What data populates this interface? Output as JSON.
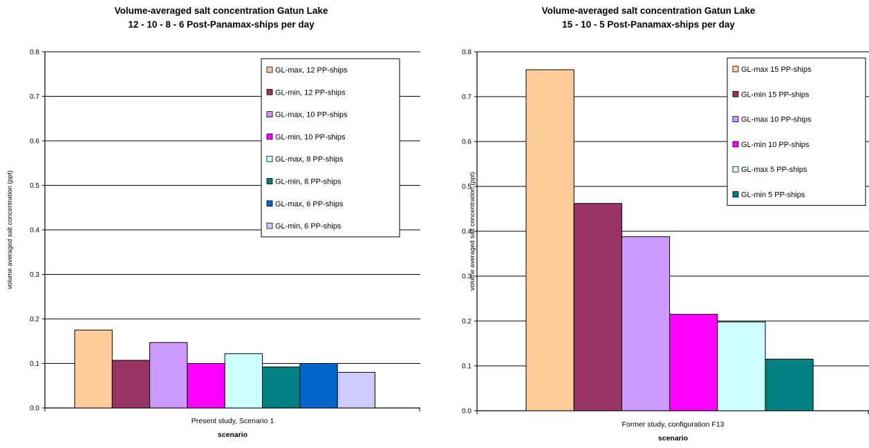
{
  "charts": [
    {
      "id": "left",
      "chart_data": {
        "type": "bar",
        "title_lines": [
          "Volume-averaged salt concentration Gatun Lake",
          "12 - 10 - 8 - 6 Post-Panamax-ships per day"
        ],
        "xlabel": "scenario",
        "ylabel": "volume averaged salt concentration (ppt)",
        "categories": [
          "Present study, Scenario 1"
        ],
        "ylim": [
          0,
          0.8
        ],
        "yticks": [
          "0.0",
          "0.1",
          "0.2",
          "0.3",
          "0.4",
          "0.5",
          "0.6",
          "0.7",
          "0.8"
        ],
        "grid": true,
        "legend_position": "top-right",
        "series": [
          {
            "name": "GL-max, 12 PP-ships",
            "values": [
              0.175
            ],
            "color": "#FFCC99"
          },
          {
            "name": "GL-min, 12 PP-ships",
            "values": [
              0.107
            ],
            "color": "#993366"
          },
          {
            "name": "GL-max, 10 PP-ships",
            "values": [
              0.147
            ],
            "color": "#CC99FF"
          },
          {
            "name": "GL-min, 10 PP-ships",
            "values": [
              0.1
            ],
            "color": "#FF00FF"
          },
          {
            "name": "GL-max, 8 PP-ships",
            "values": [
              0.122
            ],
            "color": "#CCFFFF"
          },
          {
            "name": "GL-min, 8 PP-ships",
            "values": [
              0.092
            ],
            "color": "#008080"
          },
          {
            "name": "GL-max, 6 PP-ships",
            "values": [
              0.1
            ],
            "color": "#0066CC"
          },
          {
            "name": "GL-min, 6 PP-ships",
            "values": [
              0.08
            ],
            "color": "#CCCCFF"
          }
        ]
      }
    },
    {
      "id": "right",
      "chart_data": {
        "type": "bar",
        "title_lines": [
          "Volume-averaged salt concentration Gatun Lake",
          "15 - 10 - 5 Post-Panamax-ships per day"
        ],
        "xlabel": "scenario",
        "ylabel": "volume averaged salt concentration (ppt)",
        "categories": [
          "Former study, configuration F13"
        ],
        "ylim": [
          0,
          0.8
        ],
        "yticks": [
          "0.0",
          "0.1",
          "0.2",
          "0.3",
          "0.4",
          "0.5",
          "0.6",
          "0.7",
          "0.8"
        ],
        "grid": true,
        "legend_position": "top-right",
        "series": [
          {
            "name": "GL-max 15 PP-ships",
            "values": [
              0.76
            ],
            "color": "#FFCC99"
          },
          {
            "name": "GL-min 15 PP-ships",
            "values": [
              0.462
            ],
            "color": "#993366"
          },
          {
            "name": "GL-max 10 PP-ships",
            "values": [
              0.388
            ],
            "color": "#CC99FF"
          },
          {
            "name": "GL-min 10 PP-ships",
            "values": [
              0.215
            ],
            "color": "#FF00FF"
          },
          {
            "name": "GL-max 5 PP-ships",
            "values": [
              0.198
            ],
            "color": "#CCFFFF"
          },
          {
            "name": "GL-min 5 PP-ships",
            "values": [
              0.115
            ],
            "color": "#008080"
          }
        ]
      }
    }
  ]
}
